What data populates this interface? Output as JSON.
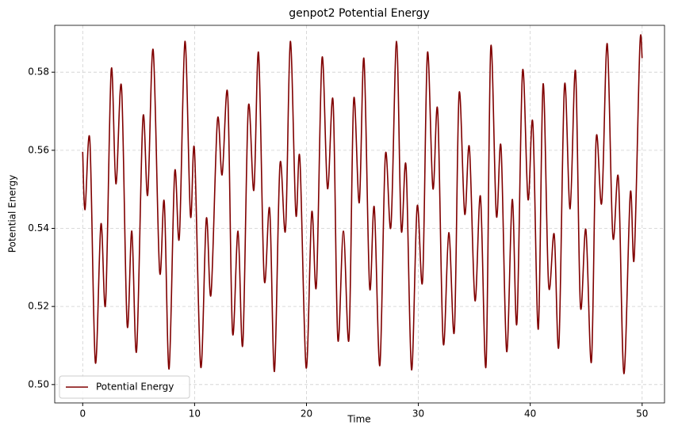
{
  "chart_data": {
    "type": "line",
    "title": "genpot2 Potential Energy",
    "xlabel": "Time",
    "ylabel": "Potential Energy",
    "x": [
      0,
      0.21,
      0.64,
      1.13,
      1.63,
      2.05,
      2.55,
      2.97,
      3.47,
      3.97,
      4.39,
      4.82,
      5.38,
      5.81,
      6.3,
      6.87,
      7.29,
      7.72,
      8.22,
      8.64,
      9.14,
      9.63,
      9.99,
      10.55,
      11.05,
      11.47,
      12.04,
      12.46,
      12.96,
      13.39,
      13.88,
      14.31,
      14.8,
      15.3,
      15.72,
      16.22,
      16.71,
      17.14,
      17.63,
      18.13,
      18.56,
      19.05,
      19.41,
      19.97,
      20.47,
      20.89,
      21.39,
      21.88,
      22.38,
      22.8,
      23.3,
      23.8,
      24.22,
      24.72,
      25.14,
      25.64,
      26.06,
      26.56,
      27.05,
      27.55,
      28.05,
      28.47,
      28.9,
      29.39,
      29.89,
      30.38,
      30.81,
      31.3,
      31.73,
      32.22,
      32.72,
      33.22,
      33.64,
      34.14,
      34.56,
      35.06,
      35.55,
      36.05,
      36.47,
      36.97,
      37.39,
      37.89,
      38.39,
      38.81,
      39.31,
      39.8,
      40.23,
      40.72,
      41.15,
      41.64,
      42.14,
      42.56,
      43.06,
      43.56,
      44.05,
      44.48,
      44.97,
      45.47,
      45.89,
      46.39,
      46.88,
      47.38,
      47.88,
      48.37,
      48.94,
      49.29,
      49.79,
      50
    ],
    "series": [
      {
        "name": "Potential Energy",
        "color": "#800000",
        "values": [
          0.5596,
          0.5448,
          0.5626,
          0.5057,
          0.5411,
          0.5209,
          0.5806,
          0.5514,
          0.5762,
          0.5154,
          0.5393,
          0.5087,
          0.5681,
          0.5486,
          0.5857,
          0.5292,
          0.5468,
          0.504,
          0.5543,
          0.5377,
          0.5879,
          0.5433,
          0.5601,
          0.5045,
          0.5425,
          0.5231,
          0.5677,
          0.5537,
          0.5743,
          0.5134,
          0.5393,
          0.5103,
          0.5709,
          0.5498,
          0.5849,
          0.5271,
          0.545,
          0.5034,
          0.5563,
          0.5397,
          0.5879,
          0.5437,
          0.5579,
          0.5043,
          0.5441,
          0.5255,
          0.5836,
          0.5502,
          0.5725,
          0.5117,
          0.5393,
          0.5117,
          0.5729,
          0.5466,
          0.5834,
          0.5251,
          0.5454,
          0.5049,
          0.5587,
          0.5405,
          0.5879,
          0.5397,
          0.5559,
          0.5038,
          0.5456,
          0.5267,
          0.5849,
          0.5502,
          0.5701,
          0.5107,
          0.5389,
          0.5138,
          0.5745,
          0.5437,
          0.5608,
          0.5215,
          0.5482,
          0.5049,
          0.5863,
          0.5433,
          0.5608,
          0.5085,
          0.5474,
          0.5158,
          0.5802,
          0.5474,
          0.567,
          0.5142,
          0.577,
          0.5255,
          0.5385,
          0.5101,
          0.5766,
          0.545,
          0.5802,
          0.5203,
          0.5397,
          0.5059,
          0.5629,
          0.5466,
          0.5873,
          0.538,
          0.5528,
          0.5028,
          0.549,
          0.5324,
          0.5863,
          0.5836
        ]
      }
    ],
    "xlim": [
      -2.5,
      52
    ],
    "ylim": [
      0.4953,
      0.592
    ],
    "xticks": [
      0,
      10,
      20,
      30,
      40,
      50
    ],
    "yticks": [
      {
        "value": 0.5,
        "label": "0.50"
      },
      0.52,
      0.54,
      0.56,
      0.58
    ],
    "grid": true,
    "legend": "lower left"
  }
}
